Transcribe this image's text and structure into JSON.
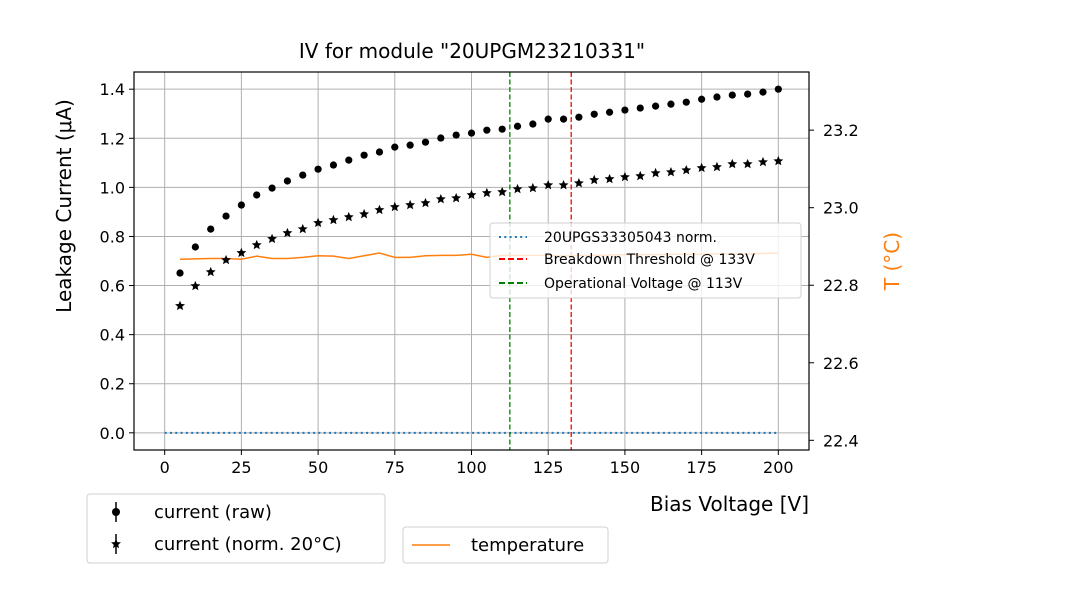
{
  "chart_data": {
    "type": "scatter",
    "title": "IV for module \"20UPGM23210331\"",
    "xlabel": "Bias Voltage [V]",
    "ylabel": "Leakage Current (μA)",
    "y2label": "T (°C)",
    "xlim": [
      -10,
      210
    ],
    "ylim": [
      -0.07,
      1.47
    ],
    "y2lim": [
      22.375,
      23.35
    ],
    "xticks": [
      0,
      25,
      50,
      75,
      100,
      125,
      150,
      175,
      200
    ],
    "xtick_labels": [
      "0",
      "25",
      "50",
      "75",
      "100",
      "125",
      "150",
      "175",
      "200"
    ],
    "yticks": [
      0.0,
      0.2,
      0.4,
      0.6,
      0.8,
      1.0,
      1.2,
      1.4
    ],
    "ytick_labels": [
      "0.0",
      "0.2",
      "0.4",
      "0.6",
      "0.8",
      "1.0",
      "1.2",
      "1.4"
    ],
    "y2ticks": [
      22.4,
      22.6,
      22.8,
      23.0,
      23.2
    ],
    "y2tick_labels": [
      "22.4",
      "22.6",
      "22.8",
      "23.0",
      "23.2"
    ],
    "grid": true,
    "x": [
      5,
      10,
      15,
      20,
      25,
      30,
      35,
      40,
      45,
      50,
      55,
      60,
      65,
      70,
      75,
      80,
      85,
      90,
      95,
      100,
      105,
      110,
      115,
      120,
      125,
      130,
      135,
      140,
      145,
      150,
      155,
      160,
      165,
      170,
      175,
      180,
      185,
      190,
      195,
      200
    ],
    "series": [
      {
        "name": "current (raw)",
        "marker": "circle",
        "color": "#000000",
        "axis": "left",
        "values": [
          0.651,
          0.757,
          0.83,
          0.883,
          0.928,
          0.969,
          0.997,
          1.026,
          1.05,
          1.074,
          1.091,
          1.111,
          1.131,
          1.144,
          1.164,
          1.172,
          1.184,
          1.201,
          1.213,
          1.221,
          1.233,
          1.237,
          1.249,
          1.258,
          1.278,
          1.278,
          1.286,
          1.298,
          1.306,
          1.315,
          1.323,
          1.331,
          1.339,
          1.347,
          1.359,
          1.368,
          1.376,
          1.38,
          1.388,
          1.4
        ]
      },
      {
        "name": "current (norm. 20°C)",
        "marker": "star",
        "color": "#000000",
        "axis": "left",
        "values": [
          0.517,
          0.598,
          0.655,
          0.704,
          0.733,
          0.765,
          0.79,
          0.814,
          0.83,
          0.855,
          0.867,
          0.879,
          0.891,
          0.908,
          0.92,
          0.928,
          0.936,
          0.952,
          0.956,
          0.969,
          0.977,
          0.981,
          0.993,
          0.997,
          1.009,
          1.009,
          1.017,
          1.03,
          1.034,
          1.042,
          1.046,
          1.058,
          1.062,
          1.07,
          1.079,
          1.083,
          1.095,
          1.095,
          1.103,
          1.107
        ]
      },
      {
        "name": "temperature",
        "marker": "line",
        "color": "#ff7f0e",
        "axis": "right",
        "values": [
          22.867,
          22.868,
          22.869,
          22.869,
          22.867,
          22.875,
          22.869,
          22.869,
          22.872,
          22.876,
          22.875,
          22.869,
          22.876,
          22.883,
          22.872,
          22.872,
          22.876,
          22.877,
          22.877,
          22.88,
          22.872,
          22.877,
          22.877,
          22.877,
          22.877,
          22.875,
          22.877,
          22.877,
          22.878,
          22.879,
          22.879,
          22.879,
          22.88,
          22.88,
          22.88,
          22.881,
          22.881,
          22.881,
          22.882,
          22.883
        ]
      }
    ],
    "reference_lines": [
      {
        "name": "20UPGS33305043 norm.",
        "type": "horizontal",
        "value": 0.0,
        "x_range": [
          0,
          200
        ],
        "style": "dotted",
        "color": "#1f77b4"
      },
      {
        "name": "Breakdown Threshold @ 133V",
        "type": "vertical",
        "value": 132.5,
        "style": "dashed",
        "color": "#ff0000"
      },
      {
        "name": "Operational Voltage @ 113V",
        "type": "vertical",
        "value": 112.5,
        "style": "dashed",
        "color": "#008000"
      }
    ],
    "legends": [
      {
        "placement": "center-right",
        "entries": [
          "20UPGS33305043 norm.",
          "Breakdown Threshold @ 133V",
          "Operational Voltage @ 113V"
        ]
      },
      {
        "placement": "below-left",
        "entries": [
          "current (raw)",
          "current (norm. 20°C)"
        ]
      },
      {
        "placement": "below-center",
        "entries": [
          "temperature"
        ]
      }
    ]
  }
}
